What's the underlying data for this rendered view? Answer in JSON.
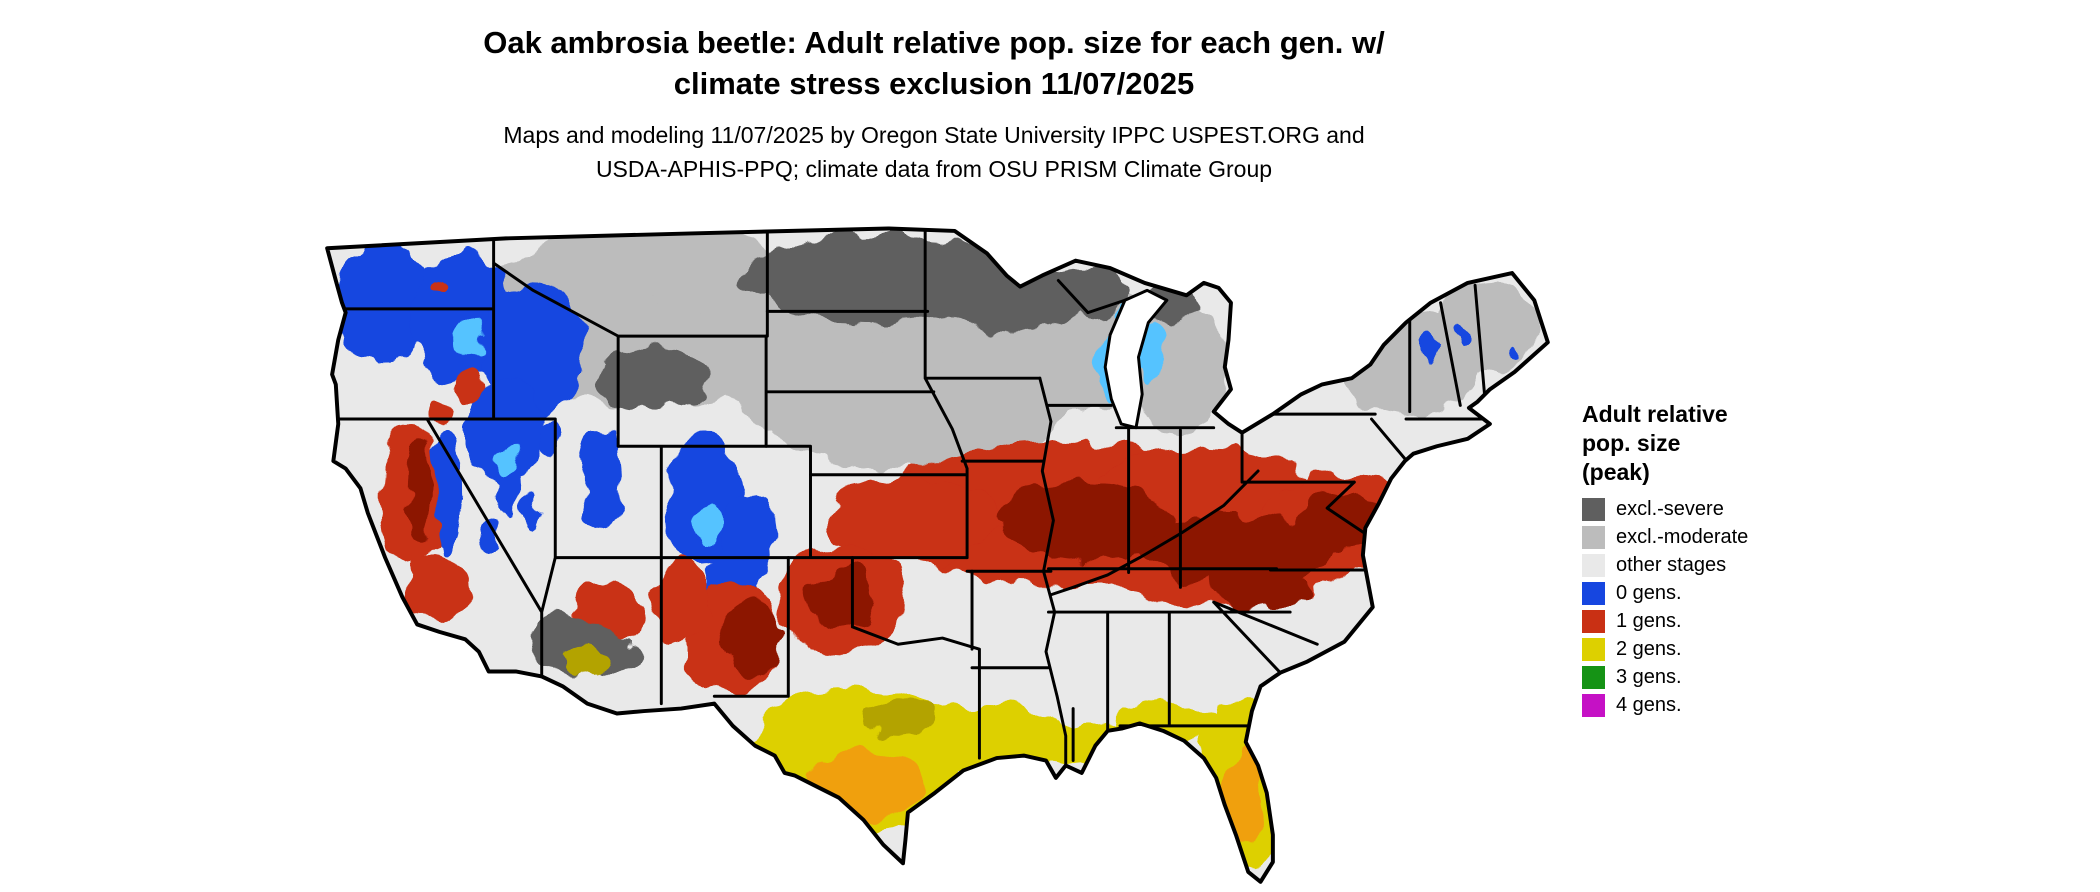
{
  "header": {
    "title": "Oak ambrosia beetle: Adult relative pop. size for each gen. w/\nclimate stress exclusion 11/07/2025",
    "credits": "Maps and modeling 11/07/2025 by Oregon State University IPPC USPEST.ORG and\nUSDA-APHIS-PPQ; climate data from OSU PRISM Climate Group"
  },
  "legend": {
    "title": "Adult relative\npop. size\n(peak)",
    "items": [
      {
        "key": "severe",
        "label": "excl.-severe",
        "color": "#5f5f5f"
      },
      {
        "key": "moderate",
        "label": "excl.-moderate",
        "color": "#bcbcbc"
      },
      {
        "key": "other",
        "label": "other stages",
        "color": "#e9e9e9"
      },
      {
        "key": "gens0",
        "label": "0 gens.",
        "color": "#1646e0"
      },
      {
        "key": "gens1",
        "label": "1 gens.",
        "color": "#c93014"
      },
      {
        "key": "gens2",
        "label": "2 gens.",
        "color": "#ddd000"
      },
      {
        "key": "gens3",
        "label": "3 gens.",
        "color": "#159315"
      },
      {
        "key": "gens4",
        "label": "4 gens.",
        "color": "#c511c5"
      }
    ]
  },
  "map": {
    "region_name": "Continental United States",
    "extra_colors": {
      "gens1_dark": "#8c1605",
      "gens0_light": "#55c3ff",
      "gens2_orange": "#f0a010",
      "gens2_dark": "#b3a300",
      "outline": "#000000",
      "water": "#ffffff"
    }
  }
}
